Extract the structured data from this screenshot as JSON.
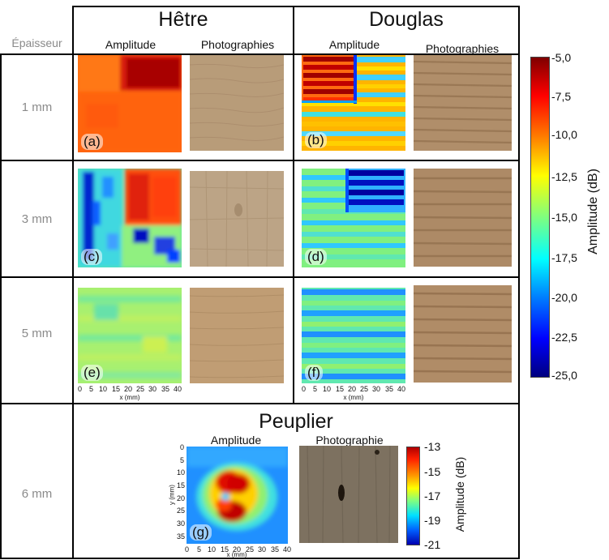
{
  "header": {
    "col1_title": "Hêtre",
    "col2_title": "Douglas",
    "thickness_header": "Épaisseur",
    "amplitude_label": "Amplitude",
    "photos_label": "Photographies"
  },
  "rows": [
    {
      "thickness": "1 mm",
      "left_label": "(a)",
      "right_label": "(b)"
    },
    {
      "thickness": "3 mm",
      "left_label": "(c)",
      "right_label": "(d)"
    },
    {
      "thickness": "5 mm",
      "left_label": "(e)",
      "right_label": "(f)"
    }
  ],
  "x_axis": {
    "ticks": [
      "0",
      "5",
      "10",
      "15",
      "20",
      "25",
      "30",
      "35",
      "40"
    ],
    "label": "x (mm)"
  },
  "colorbar": {
    "title": "Amplitude (dB)",
    "ticks": [
      "-5,0",
      "-7,5",
      "-10,0",
      "-12,5",
      "-15,0",
      "-17,5",
      "-20,0",
      "-22,5",
      "-25,0"
    ],
    "min": -25.0,
    "max": -5.0
  },
  "bottom": {
    "thickness": "6 mm",
    "title": "Peuplier",
    "amplitude_label": "Amplitude",
    "photo_label": "Photographie",
    "panel_label": "(g)",
    "x_ticks": [
      "0",
      "5",
      "10",
      "15",
      "20",
      "25",
      "30",
      "35",
      "40"
    ],
    "x_label": "x (mm)",
    "y_ticks": [
      "0",
      "5",
      "10",
      "15",
      "20",
      "25",
      "30",
      "35"
    ],
    "y_label": "y (mm)",
    "colorbar": {
      "title": "Amplitude (dB)",
      "ticks": [
        "-13",
        "-15",
        "-17",
        "-19",
        "-21"
      ],
      "min": -21,
      "max": -13
    }
  },
  "colors": {
    "jet_dark_red": "#7f0000",
    "jet_red": "#ff0000",
    "jet_orange": "#ff7f00",
    "jet_yellow": "#ffff00",
    "jet_green": "#7fff7f",
    "jet_cyan": "#00ffff",
    "jet_blue": "#0000ff",
    "jet_dark_blue": "#00007f",
    "beech_wood": "#b79a77",
    "douglas_wood": "#a98461",
    "poplar_wood": "#7d7160"
  }
}
